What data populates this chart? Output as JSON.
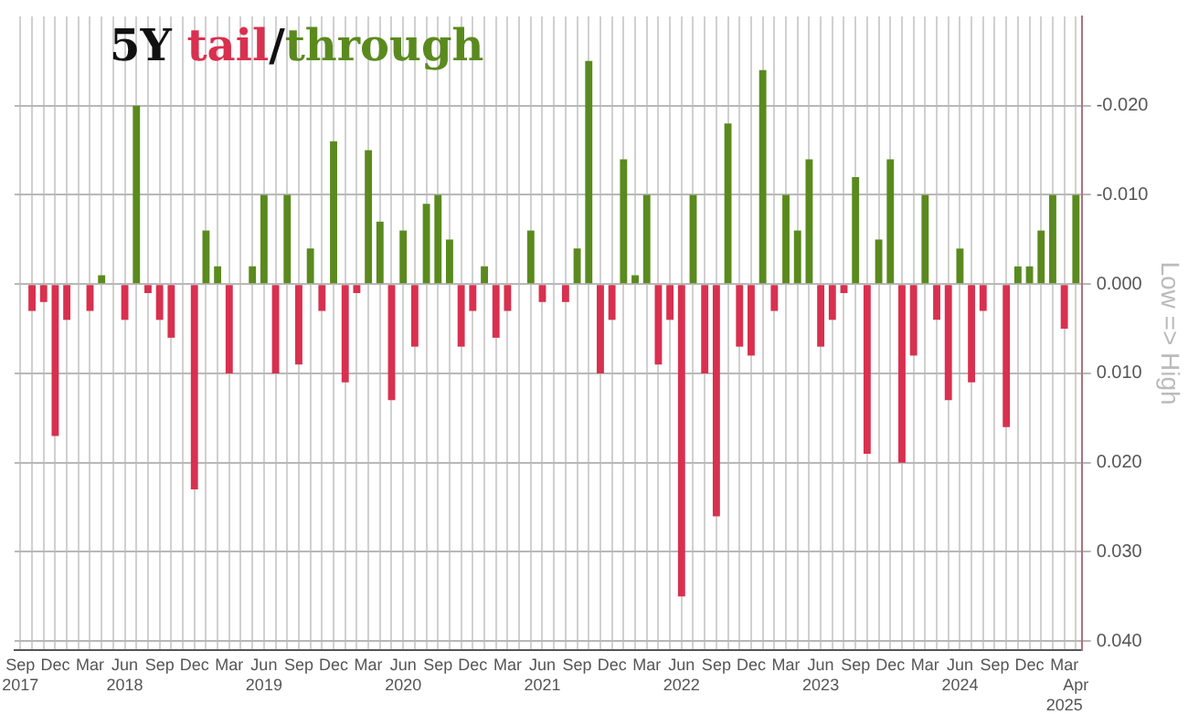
{
  "chart_data": {
    "type": "bar",
    "title": "5Y tail/through",
    "ylabel": "Low => High",
    "categories": [
      "Sep\n2017",
      null,
      null,
      "Dec",
      null,
      null,
      "Mar",
      null,
      null,
      "Jun\n2018",
      null,
      null,
      "Sep",
      null,
      null,
      "Dec",
      null,
      null,
      "Mar",
      null,
      null,
      "Jun\n2019",
      null,
      null,
      "Sep",
      null,
      null,
      "Dec",
      null,
      null,
      "Mar",
      null,
      null,
      "Jun\n2020",
      null,
      null,
      "Sep",
      null,
      null,
      "Dec",
      null,
      null,
      "Mar",
      null,
      null,
      "Jun\n2021",
      null,
      null,
      "Sep",
      null,
      null,
      "Dec",
      null,
      null,
      "Mar",
      null,
      null,
      "Jun\n2022",
      null,
      null,
      "Sep",
      null,
      null,
      "Dec",
      null,
      null,
      "Mar",
      null,
      null,
      "Jun\n2023",
      null,
      null,
      "Sep",
      null,
      null,
      "Dec",
      null,
      null,
      "Mar",
      null,
      null,
      "Jun\n2024",
      null,
      null,
      "Sep",
      null,
      null,
      "Dec",
      null,
      null,
      "Mar\n2025",
      "Apr"
    ],
    "values": [
      null,
      0.003,
      0.002,
      0.017,
      0.004,
      0,
      0.003,
      -0.001,
      0,
      0.004,
      -0.02,
      0.001,
      0.004,
      0.006,
      0,
      0.023,
      -0.006,
      -0.002,
      0.01,
      0,
      -0.002,
      -0.01,
      0.01,
      -0.01,
      0.009,
      -0.004,
      0.003,
      -0.016,
      0.011,
      0.001,
      -0.015,
      -0.007,
      0.013,
      -0.006,
      0.007,
      -0.009,
      -0.01,
      -0.005,
      0.007,
      0.003,
      -0.002,
      0.006,
      0.003,
      0,
      -0.006,
      0.002,
      0,
      0.002,
      -0.004,
      -0.025,
      0.01,
      0.004,
      -0.014,
      -0.001,
      -0.01,
      0.009,
      0.004,
      0.035,
      -0.01,
      0.01,
      0.026,
      -0.018,
      0.007,
      0.008,
      -0.024,
      0.003,
      -0.01,
      -0.006,
      -0.014,
      0.007,
      0.004,
      0.001,
      -0.012,
      0.019,
      -0.005,
      -0.014,
      0.02,
      0.008,
      -0.01,
      0.004,
      0.013,
      -0.004,
      0.011,
      0.003,
      0,
      0.016,
      -0.002,
      -0.002,
      -0.006,
      -0.01,
      0.005,
      -0.01
    ],
    "colors": [
      "#d9304f",
      "#d9304f",
      "#d9304f",
      "#d9304f",
      "#d9304f",
      "#d9304f",
      "#d9304f",
      "#5a8a1e",
      "#d9304f",
      "#d9304f",
      "#5a8a1e",
      "#d9304f",
      "#d9304f",
      "#d9304f",
      "#d9304f",
      "#d9304f",
      "#5a8a1e",
      "#5a8a1e",
      "#d9304f",
      "#d9304f",
      "#5a8a1e",
      "#5a8a1e",
      "#d9304f",
      "#5a8a1e",
      "#d9304f",
      "#5a8a1e",
      "#d9304f",
      "#5a8a1e",
      "#d9304f",
      "#d9304f",
      "#5a8a1e",
      "#5a8a1e",
      "#d9304f",
      "#5a8a1e",
      "#d9304f",
      "#5a8a1e",
      "#5a8a1e",
      "#5a8a1e",
      "#d9304f",
      "#d9304f",
      "#5a8a1e",
      "#d9304f",
      "#d9304f",
      "#d9304f",
      "#5a8a1e",
      "#d9304f",
      "#d9304f",
      "#d9304f",
      "#5a8a1e",
      "#5a8a1e",
      "#d9304f",
      "#d9304f",
      "#5a8a1e",
      "#5a8a1e",
      "#5a8a1e",
      "#d9304f",
      "#d9304f",
      "#d9304f",
      "#5a8a1e",
      "#d9304f",
      "#d9304f",
      "#5a8a1e",
      "#d9304f",
      "#d9304f",
      "#5a8a1e",
      "#d9304f",
      "#5a8a1e",
      "#5a8a1e",
      "#5a8a1e",
      "#d9304f",
      "#d9304f",
      "#d9304f",
      "#5a8a1e",
      "#d9304f",
      "#5a8a1e",
      "#5a8a1e",
      "#d9304f",
      "#d9304f",
      "#5a8a1e",
      "#d9304f",
      "#d9304f",
      "#5a8a1e",
      "#d9304f",
      "#d9304f",
      "#d9304f",
      "#d9304f",
      "#5a8a1e",
      "#5a8a1e",
      "#5a8a1e",
      "#5a8a1e",
      "#d9304f",
      "#5a8a1e"
    ],
    "ylim": [
      0.041,
      -0.03
    ],
    "yticks": [
      {
        "value": -0.02,
        "label": "-0.020"
      },
      {
        "value": -0.01,
        "label": "-0.010"
      },
      {
        "value": 0,
        "label": "0.000"
      },
      {
        "value": 0.01,
        "label": "0.010"
      },
      {
        "value": 0.02,
        "label": "0.020"
      },
      {
        "value": 0.03,
        "label": "0.030"
      },
      {
        "value": 0.04,
        "label": "0.040"
      }
    ],
    "grid": true,
    "legend": false
  }
}
